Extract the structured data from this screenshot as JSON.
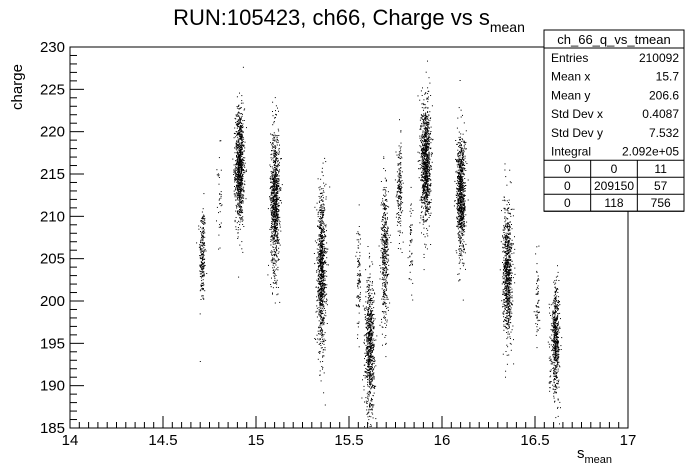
{
  "chart_data": {
    "type": "scatter",
    "title_main": "RUN:105423, ch66, Charge vs s",
    "title_subscript": "mean",
    "xlabel_main": "s",
    "xlabel_subscript": "mean",
    "ylabel": "charge",
    "xlim": [
      14,
      17
    ],
    "ylim": [
      185,
      230
    ],
    "x_ticks": [
      "14",
      "14.5",
      "15",
      "15.5",
      "16",
      "16.5",
      "17"
    ],
    "y_ticks": [
      "185",
      "190",
      "195",
      "200",
      "205",
      "210",
      "215",
      "220",
      "225",
      "230"
    ],
    "grid": false,
    "marker_color": "#000000",
    "clusters": [
      {
        "x": 14.71,
        "y": 205.5,
        "sx": 0.008,
        "sy": 3.0,
        "n": 230
      },
      {
        "x": 14.8,
        "y": 212.0,
        "sx": 0.006,
        "sy": 3.0,
        "n": 35
      },
      {
        "x": 14.91,
        "y": 216.0,
        "sx": 0.012,
        "sy": 3.4,
        "n": 900
      },
      {
        "x": 15.1,
        "y": 212.0,
        "sx": 0.012,
        "sy": 4.2,
        "n": 900
      },
      {
        "x": 15.35,
        "y": 203.5,
        "sx": 0.012,
        "sy": 4.6,
        "n": 900
      },
      {
        "x": 15.55,
        "y": 202.5,
        "sx": 0.006,
        "sy": 3.0,
        "n": 90
      },
      {
        "x": 15.61,
        "y": 194.5,
        "sx": 0.012,
        "sy": 4.0,
        "n": 750
      },
      {
        "x": 15.69,
        "y": 205.5,
        "sx": 0.01,
        "sy": 4.2,
        "n": 420
      },
      {
        "x": 15.77,
        "y": 213.5,
        "sx": 0.008,
        "sy": 2.6,
        "n": 180
      },
      {
        "x": 15.83,
        "y": 207.0,
        "sx": 0.005,
        "sy": 2.5,
        "n": 50
      },
      {
        "x": 15.91,
        "y": 216.5,
        "sx": 0.013,
        "sy": 3.6,
        "n": 1000
      },
      {
        "x": 16.1,
        "y": 212.5,
        "sx": 0.012,
        "sy": 3.6,
        "n": 850
      },
      {
        "x": 16.35,
        "y": 203.5,
        "sx": 0.012,
        "sy": 3.8,
        "n": 800
      },
      {
        "x": 16.51,
        "y": 200.0,
        "sx": 0.006,
        "sy": 2.5,
        "n": 60
      },
      {
        "x": 16.61,
        "y": 195.5,
        "sx": 0.01,
        "sy": 3.2,
        "n": 550
      },
      {
        "x": 16.58,
        "y": 193.0,
        "sx": 0.005,
        "sy": 3.5,
        "n": 30
      }
    ],
    "stats_box": {
      "header": "ch_66_q_vs_tmean",
      "rows": [
        {
          "label": "Entries",
          "value": "210092"
        },
        {
          "label": "Mean x",
          "value": "15.7"
        },
        {
          "label": "Mean y",
          "value": "206.6"
        },
        {
          "label": "Std Dev x",
          "value": "0.4087"
        },
        {
          "label": "Std Dev y",
          "value": "7.532"
        },
        {
          "label": "Integral",
          "value": "2.092e+05"
        }
      ],
      "grid": [
        [
          "0",
          "0",
          "11"
        ],
        [
          "0",
          "209150",
          "57"
        ],
        [
          "0",
          "118",
          "756"
        ]
      ]
    }
  }
}
